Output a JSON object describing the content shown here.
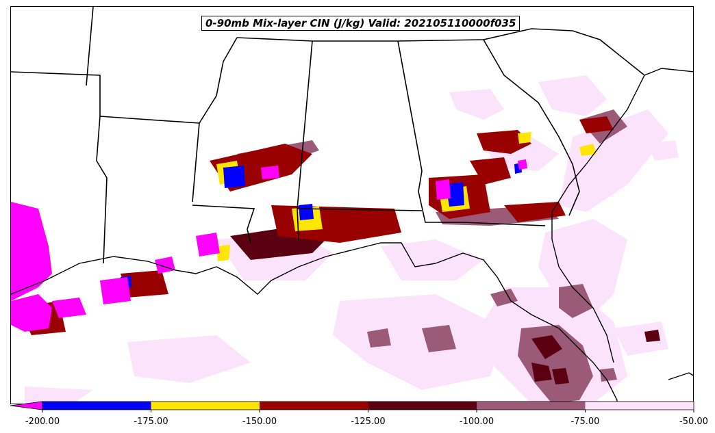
{
  "title": "0-90mb Mix-layer CIN (J/kg) Valid: 202105110000f035",
  "colorbar": {
    "ticks": [
      "-200.00",
      "-175.00",
      "-150.00",
      "-125.00",
      "-100.00",
      "-75.00",
      "-50.00"
    ],
    "colors": [
      "#ff00ff",
      "#0000ff",
      "#ffe600",
      "#990000",
      "#5a0010",
      "#9a5a78",
      "#fbe4fb"
    ],
    "extend": "min"
  }
}
